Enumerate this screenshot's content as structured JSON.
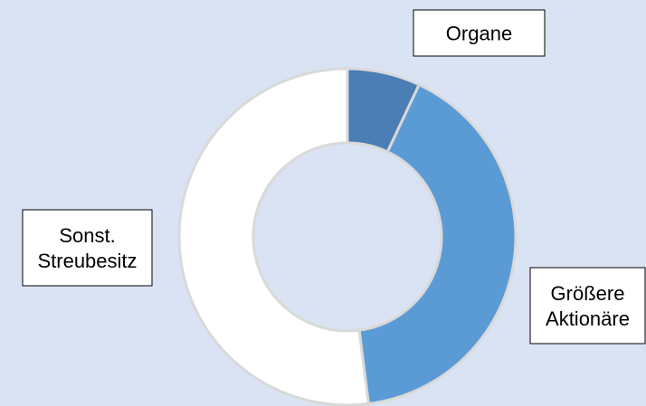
{
  "chart_data": {
    "type": "donut",
    "categories": [
      "Organe",
      "Größere Aktionäre",
      "Sonst. Streubesitz"
    ],
    "values": [
      7,
      41,
      52
    ],
    "colors": [
      "#4a7eb4",
      "#5b9bd5",
      "#ffffff"
    ]
  }
}
